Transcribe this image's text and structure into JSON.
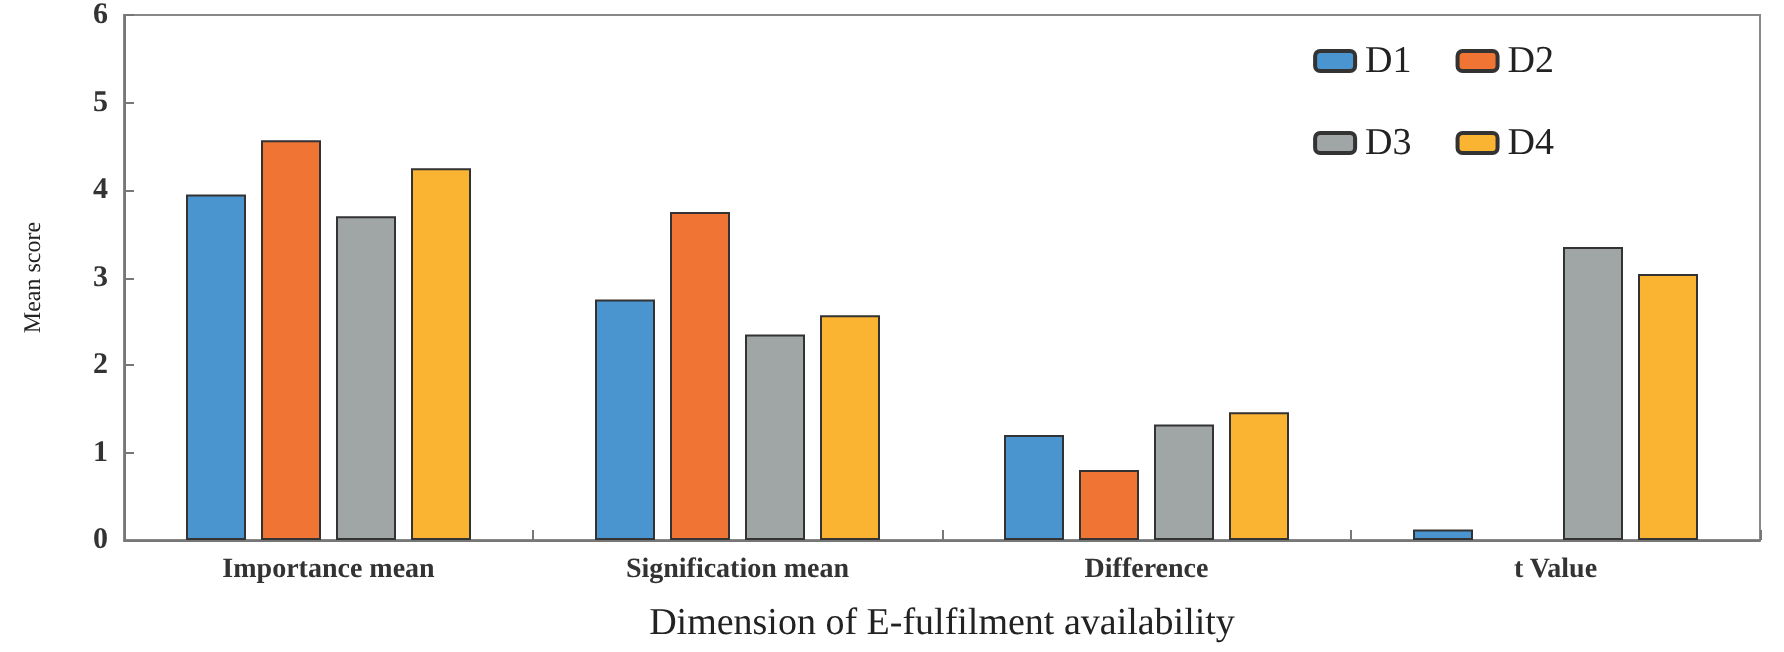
{
  "chart_data": {
    "type": "bar",
    "xlabel": "Dimension of E-fulfilment availability",
    "ylabel": "Mean score",
    "categories": [
      "Importance mean",
      "Signification mean",
      "Difference",
      "t Value"
    ],
    "series": [
      {
        "name": "D1",
        "color": "#4a94d0",
        "values": [
          3.95,
          2.75,
          1.2,
          0.12
        ]
      },
      {
        "name": "D2",
        "color": "#f07433",
        "values": [
          4.57,
          3.75,
          0.8,
          null
        ]
      },
      {
        "name": "D3",
        "color": "#a0a5a5",
        "values": [
          3.7,
          2.35,
          1.32,
          3.35
        ]
      },
      {
        "name": "D4",
        "color": "#fbb431",
        "values": [
          4.25,
          2.57,
          1.46,
          3.04
        ]
      }
    ],
    "ylim": [
      0,
      6
    ],
    "yticks": [
      0,
      1,
      2,
      3,
      4,
      5,
      6
    ],
    "grid": false,
    "legend": "top right"
  }
}
